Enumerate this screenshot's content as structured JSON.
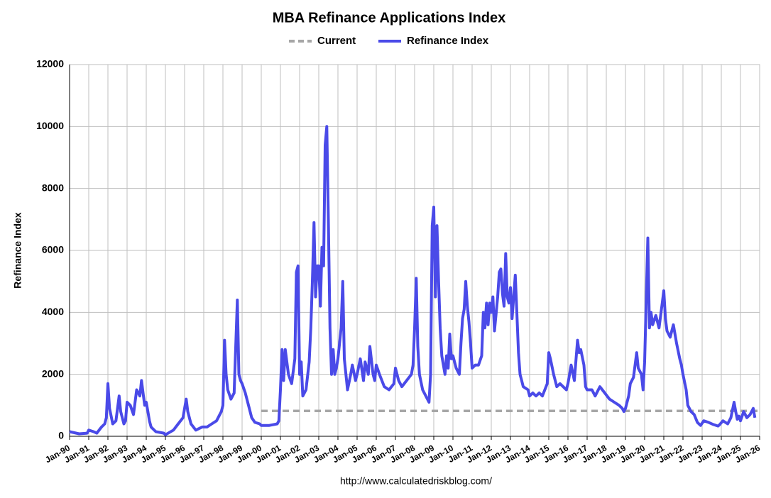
{
  "chart_data": {
    "type": "line",
    "title": "MBA Refinance Applications Index",
    "y_label": "Refinance Index",
    "source": "http://www.calculatedriskblog.com/",
    "ylim": [
      0,
      12000
    ],
    "yticks": [
      0,
      2000,
      4000,
      6000,
      8000,
      10000,
      12000
    ],
    "xlim": [
      "1990-01",
      "2026-01"
    ],
    "xticks": [
      {
        "value": "1990-01",
        "label": "Jan-90"
      },
      {
        "value": "1991-01",
        "label": "Jan-91"
      },
      {
        "value": "1992-01",
        "label": "Jan-92"
      },
      {
        "value": "1993-01",
        "label": "Jan-93"
      },
      {
        "value": "1994-01",
        "label": "Jan-94"
      },
      {
        "value": "1995-01",
        "label": "Jan-95"
      },
      {
        "value": "1996-01",
        "label": "Jan-96"
      },
      {
        "value": "1997-01",
        "label": "Jan-97"
      },
      {
        "value": "1998-01",
        "label": "Jan-98"
      },
      {
        "value": "1999-01",
        "label": "Jan-99"
      },
      {
        "value": "2000-01",
        "label": "Jan-00"
      },
      {
        "value": "2001-01",
        "label": "Jan-01"
      },
      {
        "value": "2002-01",
        "label": "Jan-02"
      },
      {
        "value": "2003-01",
        "label": "Jan-03"
      },
      {
        "value": "2004-01",
        "label": "Jan-04"
      },
      {
        "value": "2005-01",
        "label": "Jan-05"
      },
      {
        "value": "2006-01",
        "label": "Jan-06"
      },
      {
        "value": "2007-01",
        "label": "Jan-07"
      },
      {
        "value": "2008-01",
        "label": "Jan-08"
      },
      {
        "value": "2009-01",
        "label": "Jan-09"
      },
      {
        "value": "2010-01",
        "label": "Jan-10"
      },
      {
        "value": "2011-01",
        "label": "Jan-11"
      },
      {
        "value": "2012-01",
        "label": "Jan-12"
      },
      {
        "value": "2013-01",
        "label": "Jan-13"
      },
      {
        "value": "2014-01",
        "label": "Jan-14"
      },
      {
        "value": "2015-01",
        "label": "Jan-15"
      },
      {
        "value": "2016-01",
        "label": "Jan-16"
      },
      {
        "value": "2017-01",
        "label": "Jan-17"
      },
      {
        "value": "2018-01",
        "label": "Jan-18"
      },
      {
        "value": "2019-01",
        "label": "Jan-19"
      },
      {
        "value": "2020-01",
        "label": "Jan-20"
      },
      {
        "value": "2021-01",
        "label": "Jan-21"
      },
      {
        "value": "2022-01",
        "label": "Jan-22"
      },
      {
        "value": "2023-01",
        "label": "Jan-23"
      },
      {
        "value": "2024-01",
        "label": "Jan-24"
      },
      {
        "value": "2025-01",
        "label": "Jan-25"
      },
      {
        "value": "2026-01",
        "label": "Jan-26"
      }
    ],
    "grid": true,
    "legend": "top",
    "series": [
      {
        "name": "Current",
        "color": "#a6a6a6",
        "dashed": true,
        "x": [
          "2000-01",
          "2026-01"
        ],
        "values": [
          820,
          820
        ]
      },
      {
        "name": "Refinance Index",
        "color": "#4a4ae8",
        "x": [
          "1990-01",
          "1990-07",
          "1990-12",
          "1991-01",
          "1991-04",
          "1991-06",
          "1991-09",
          "1991-11",
          "1991-12",
          "1992-01",
          "1992-02",
          "1992-04",
          "1992-06",
          "1992-08",
          "1992-09",
          "1992-11",
          "1992-12",
          "1993-01",
          "1993-03",
          "1993-05",
          "1993-07",
          "1993-09",
          "1993-10",
          "1993-11",
          "1993-12",
          "1994-01",
          "1994-02",
          "1994-03",
          "1994-04",
          "1994-07",
          "1994-12",
          "1995-01",
          "1995-06",
          "1995-09",
          "1995-12",
          "1996-01",
          "1996-02",
          "1996-03",
          "1996-05",
          "1996-08",
          "1996-12",
          "1997-03",
          "1997-06",
          "1997-09",
          "1997-12",
          "1998-01",
          "1998-02",
          "1998-03",
          "1998-04",
          "1998-06",
          "1998-08",
          "1998-10",
          "1998-11",
          "1998-12",
          "1999-01",
          "1999-03",
          "1999-05",
          "1999-07",
          "1999-09",
          "1999-12",
          "2000-01",
          "2000-06",
          "2000-11",
          "2000-12",
          "2001-01",
          "2001-02",
          "2001-03",
          "2001-04",
          "2001-06",
          "2001-08",
          "2001-10",
          "2001-11",
          "2001-12",
          "2002-01",
          "2002-02",
          "2002-03",
          "2002-05",
          "2002-07",
          "2002-08",
          "2002-09",
          "2002-10",
          "2002-11",
          "2002-12",
          "2003-01",
          "2003-02",
          "2003-03",
          "2003-04",
          "2003-05",
          "2003-06",
          "2003-07",
          "2003-08",
          "2003-09",
          "2003-10",
          "2003-11",
          "2003-12",
          "2004-01",
          "2004-03",
          "2004-04",
          "2004-05",
          "2004-07",
          "2004-09",
          "2004-10",
          "2004-12",
          "2005-01",
          "2005-03",
          "2005-05",
          "2005-06",
          "2005-08",
          "2005-09",
          "2005-11",
          "2005-12",
          "2006-01",
          "2006-03",
          "2006-06",
          "2006-09",
          "2006-12",
          "2007-01",
          "2007-03",
          "2007-05",
          "2007-08",
          "2007-11",
          "2007-12",
          "2008-01",
          "2008-02",
          "2008-03",
          "2008-04",
          "2008-06",
          "2008-08",
          "2008-10",
          "2008-11",
          "2008-12",
          "2009-01",
          "2009-02",
          "2009-03",
          "2009-04",
          "2009-05",
          "2009-06",
          "2009-08",
          "2009-09",
          "2009-10",
          "2009-11",
          "2009-12",
          "2010-01",
          "2010-03",
          "2010-05",
          "2010-06",
          "2010-07",
          "2010-08",
          "2010-09",
          "2010-10",
          "2010-11",
          "2010-12",
          "2011-01",
          "2011-03",
          "2011-05",
          "2011-07",
          "2011-08",
          "2011-09",
          "2011-10",
          "2011-11",
          "2011-12",
          "2012-01",
          "2012-02",
          "2012-03",
          "2012-05",
          "2012-06",
          "2012-07",
          "2012-08",
          "2012-09",
          "2012-10",
          "2012-11",
          "2012-12",
          "2013-01",
          "2013-02",
          "2013-04",
          "2013-05",
          "2013-06",
          "2013-07",
          "2013-08",
          "2013-09",
          "2013-12",
          "2014-01",
          "2014-03",
          "2014-05",
          "2014-07",
          "2014-09",
          "2014-12",
          "2015-01",
          "2015-02",
          "2015-04",
          "2015-06",
          "2015-08",
          "2015-12",
          "2016-01",
          "2016-03",
          "2016-05",
          "2016-07",
          "2016-08",
          "2016-09",
          "2016-11",
          "2016-12",
          "2017-01",
          "2017-04",
          "2017-06",
          "2017-09",
          "2017-12",
          "2018-03",
          "2018-06",
          "2018-09",
          "2018-11",
          "2018-12",
          "2019-01",
          "2019-03",
          "2019-04",
          "2019-06",
          "2019-08",
          "2019-09",
          "2019-11",
          "2019-12",
          "2020-01",
          "2020-03",
          "2020-04",
          "2020-05",
          "2020-06",
          "2020-08",
          "2020-10",
          "2020-12",
          "2021-01",
          "2021-02",
          "2021-03",
          "2021-05",
          "2021-07",
          "2021-09",
          "2021-11",
          "2021-12",
          "2022-01",
          "2022-03",
          "2022-04",
          "2022-06",
          "2022-08",
          "2022-10",
          "2022-12",
          "2023-02",
          "2023-05",
          "2023-08",
          "2023-11",
          "2023-12",
          "2024-02",
          "2024-05",
          "2024-07",
          "2024-09",
          "2024-10",
          "2024-11",
          "2024-12",
          "2025-01",
          "2025-03",
          "2025-05",
          "2025-07",
          "2025-09",
          "2025-10"
        ],
        "values": [
          150,
          80,
          100,
          200,
          150,
          100,
          300,
          400,
          600,
          1700,
          900,
          400,
          500,
          1300,
          800,
          400,
          500,
          1100,
          1000,
          700,
          1500,
          1300,
          1800,
          1400,
          1000,
          1100,
          800,
          500,
          300,
          150,
          100,
          50,
          200,
          400,
          600,
          900,
          1200,
          800,
          400,
          200,
          300,
          300,
          400,
          500,
          800,
          1000,
          3100,
          2000,
          1500,
          1200,
          1400,
          4400,
          2000,
          1800,
          1700,
          1400,
          1000,
          600,
          450,
          400,
          350,
          350,
          400,
          500,
          1500,
          2800,
          1800,
          2800,
          2000,
          1700,
          2500,
          5300,
          5500,
          2000,
          2400,
          1300,
          1500,
          2400,
          3500,
          5000,
          6900,
          4500,
          5500,
          5500,
          4200,
          6100,
          5500,
          9400,
          10000,
          7000,
          3500,
          2000,
          2800,
          2000,
          2200,
          2500,
          3500,
          5000,
          2500,
          1500,
          2000,
          2300,
          1800,
          2000,
          2500,
          1800,
          2400,
          2000,
          2900,
          2000,
          1800,
          2300,
          2000,
          1600,
          1500,
          1700,
          2200,
          1800,
          1600,
          1800,
          2000,
          2300,
          3500,
          5100,
          2900,
          2000,
          1500,
          1300,
          1100,
          2000,
          6800,
          7400,
          4500,
          6800,
          5000,
          3500,
          2600,
          2000,
          2600,
          2200,
          3300,
          2500,
          2600,
          2200,
          2000,
          3000,
          3800,
          4100,
          5000,
          4200,
          3700,
          3000,
          2200,
          2300,
          2300,
          2600,
          4000,
          3500,
          4300,
          3600,
          4300,
          4000,
          4500,
          3400,
          4500,
          5300,
          5400,
          4600,
          4200,
          5900,
          4500,
          4300,
          4800,
          3800,
          5200,
          4000,
          2700,
          2000,
          1800,
          1600,
          1500,
          1300,
          1400,
          1300,
          1400,
          1300,
          1700,
          2700,
          2500,
          2000,
          1600,
          1700,
          1500,
          1700,
          2300,
          1800,
          3100,
          2700,
          2800,
          2300,
          1600,
          1500,
          1500,
          1300,
          1600,
          1400,
          1200,
          1100,
          1000,
          900,
          800,
          900,
          1300,
          1700,
          1900,
          2700,
          2200,
          2000,
          1500,
          2400,
          6400,
          3500,
          4000,
          3600,
          3900,
          3500,
          4300,
          4700,
          3800,
          3400,
          3200,
          3600,
          3000,
          2500,
          2300,
          2000,
          1500,
          1000,
          800,
          700,
          450,
          350,
          500,
          450,
          380,
          330,
          380,
          500,
          400,
          600,
          1100,
          800,
          550,
          650,
          500,
          800,
          600,
          700,
          900,
          600
        ]
      }
    ]
  }
}
